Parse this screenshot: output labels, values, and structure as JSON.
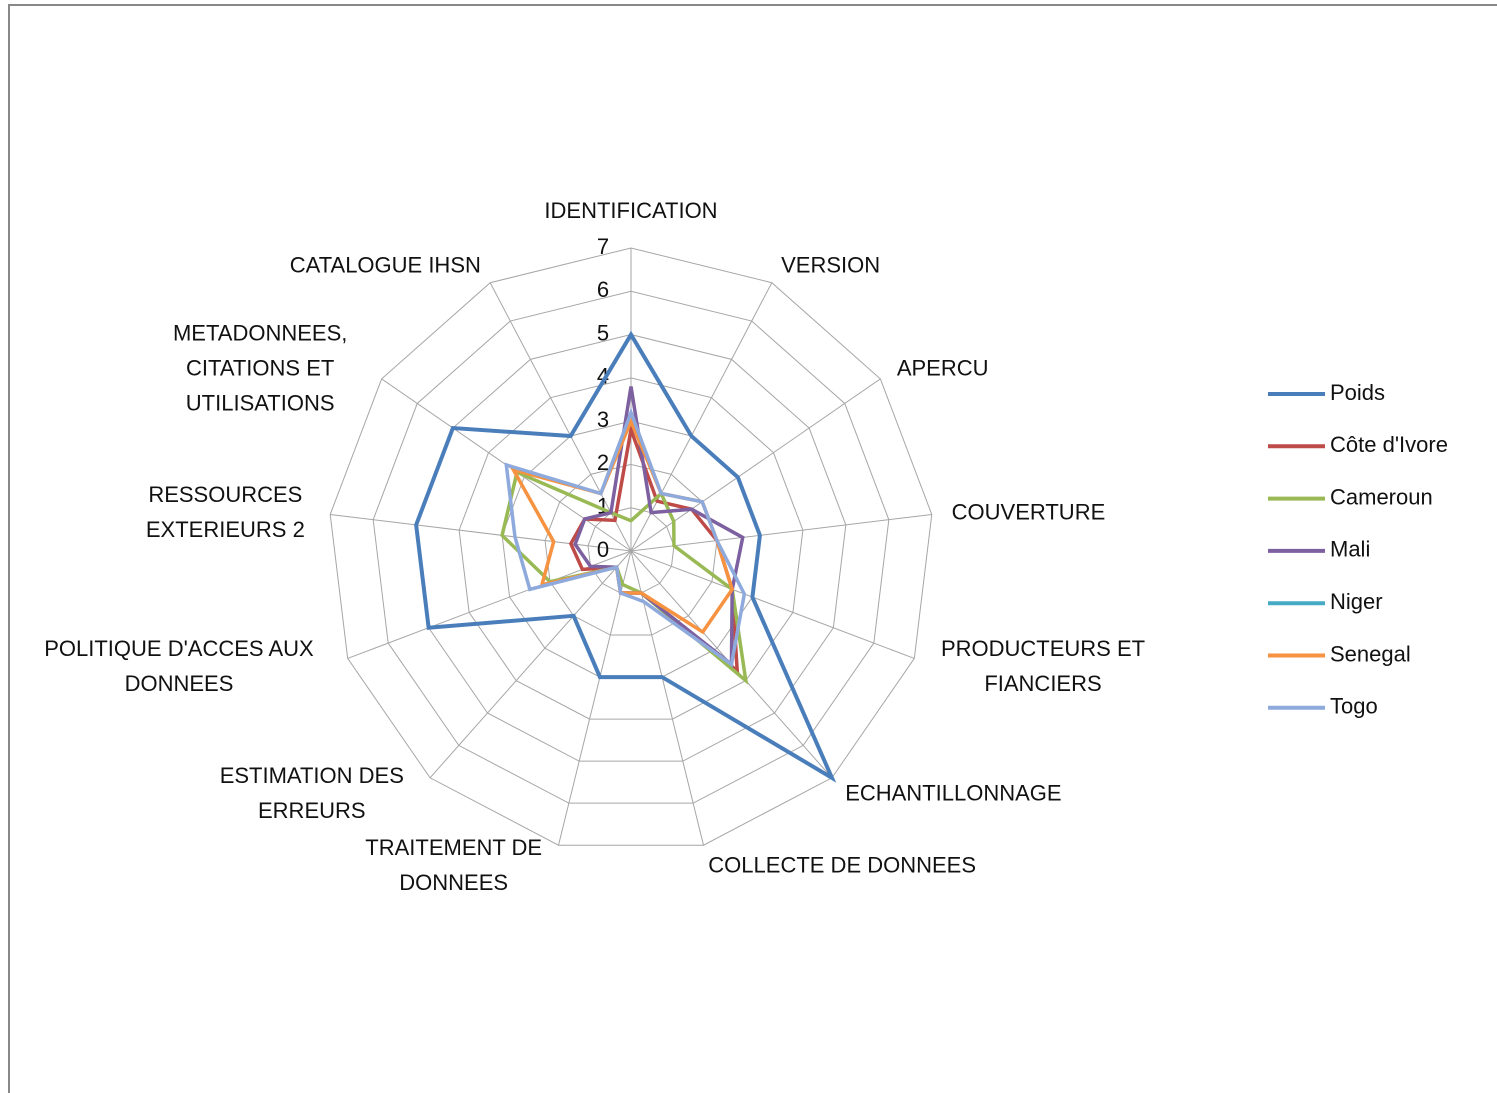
{
  "chart_data": {
    "type": "radar",
    "categories": [
      "IDENTIFICATION",
      "VERSION",
      "APERCU",
      "COUVERTURE",
      "PRODUCTEURS ET FIANCIERS",
      "ECHANTILLONNAGE",
      "COLLECTE DE DONNEES",
      "TRAITEMENT DE DONNEES",
      "ESTIMATION DES ERREURS",
      "POLITIQUE D'ACCES AUX DONNEES",
      "RESSOURCES EXTERIEURS 2",
      "METADONNEES, CITATIONS ET UTILISATIONS",
      "CATALOGUE IHSN"
    ],
    "ylim": [
      0,
      7
    ],
    "yticks": [
      0,
      1,
      2,
      3,
      4,
      5,
      6,
      7
    ],
    "grid": true,
    "legend": "right",
    "series": [
      {
        "name": "Poids",
        "color": "#4a7ebb",
        "values": [
          5,
          3,
          3,
          3,
          3,
          7,
          3,
          3,
          2,
          5,
          5,
          5,
          3
        ]
      },
      {
        "name": "Côte d'Ivore",
        "color": "#be4b48",
        "values": [
          2.8,
          1.3,
          1.7,
          2,
          2.5,
          3.7,
          1,
          1,
          0.5,
          1.2,
          1.4,
          1.3,
          0.8
        ]
      },
      {
        "name": "Cameroun",
        "color": "#98b954",
        "values": [
          0.7,
          1.5,
          1.2,
          1,
          2.5,
          4,
          1,
          0.8,
          0.5,
          2,
          3,
          3.2,
          1
        ]
      },
      {
        "name": "Mali",
        "color": "#7d60a0",
        "values": [
          3.8,
          1,
          1.7,
          2.6,
          2.5,
          3.5,
          1,
          1,
          0.5,
          1,
          1.3,
          1.3,
          1
        ]
      },
      {
        "name": "Niger",
        "color": "#46aac5",
        "values": [
          0,
          0,
          0,
          0,
          0,
          0,
          0,
          0,
          0,
          0,
          0,
          0,
          0
        ]
      },
      {
        "name": "Senegal",
        "color": "#f69240",
        "values": [
          3,
          1.5,
          2,
          2,
          2.5,
          2.5,
          1,
          1,
          0.5,
          2.2,
          1.8,
          3.3,
          1.5
        ]
      },
      {
        "name": "Togo",
        "color": "#8ea9db",
        "values": [
          3.2,
          1.5,
          2,
          2,
          2.8,
          3.5,
          1.2,
          1,
          0.5,
          2.5,
          2.7,
          3.5,
          1.5
        ]
      }
    ]
  }
}
